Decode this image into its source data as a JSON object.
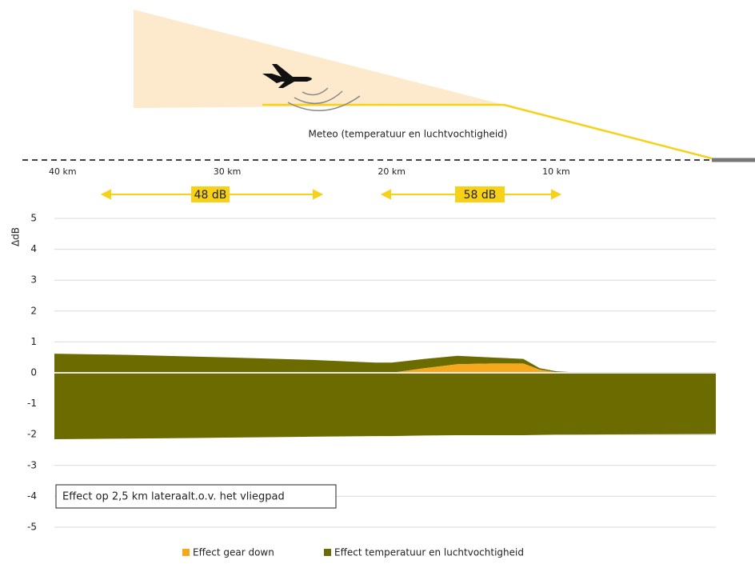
{
  "chart_data": {
    "type": "area",
    "y_label": "ΔdB",
    "top_label": "Meteo (temperatuur en luchtvochtigheid)",
    "annotations": [
      "48 dB",
      "58 dB"
    ],
    "note": "Effect op 2,5 km lateraalt.o.v. het vliegpad",
    "x": [
      40.5,
      36,
      30,
      25,
      21,
      20,
      18,
      16,
      14,
      12,
      11,
      10,
      9,
      0.3
    ],
    "xlim": [
      40.5,
      0.3
    ],
    "xticks": [
      {
        "value": 40,
        "label": "40 km"
      },
      {
        "value": 30,
        "label": "30 km"
      },
      {
        "value": 20,
        "label": "20 km"
      },
      {
        "value": 10,
        "label": "10 km"
      }
    ],
    "ylim": [
      -5,
      5
    ],
    "yticks": [
      -5,
      -4,
      -3,
      -2,
      -1,
      0,
      1,
      2,
      3,
      4,
      5
    ],
    "grid": true,
    "series": [
      {
        "name": "Effect gear down",
        "color": "#f5a81c",
        "values": [
          0,
          0,
          0,
          0,
          0,
          0,
          0.15,
          0.28,
          0.3,
          0.3,
          0.1,
          0.02,
          0,
          0
        ]
      },
      {
        "name": "Effect temperatuur en luchtvochtigheid",
        "color": "#6b6b00",
        "values": [
          0.62,
          0.58,
          0.5,
          0.42,
          0.33,
          0.33,
          0.3,
          0.27,
          0.2,
          0.15,
          0.05,
          0.03,
          0.02,
          0.02
        ],
        "lower": [
          -2.15,
          -2.13,
          -2.1,
          -2.07,
          -2.05,
          -2.05,
          -2.03,
          -2.02,
          -2.02,
          -2.02,
          -2.01,
          -2.0,
          -2.0,
          -1.98
        ]
      }
    ]
  }
}
